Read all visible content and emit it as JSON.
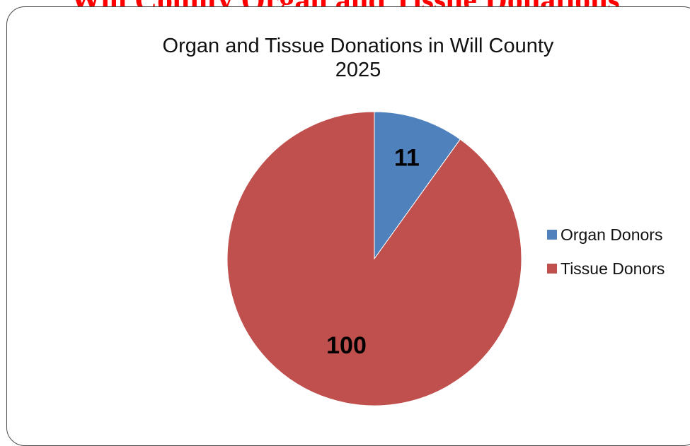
{
  "banner": {
    "text": "Will County Organ and Tissue Donations"
  },
  "chart_data": {
    "type": "pie",
    "title": "Organ and Tissue Donations in Will County",
    "subtitle": "2025",
    "categories": [
      "Organ Donors",
      "Tissue Donors"
    ],
    "values": [
      11,
      100
    ],
    "data_labels": [
      "11",
      "100"
    ],
    "colors": [
      "#4f81bd",
      "#c0504d"
    ],
    "legend_position": "right",
    "start_angle_deg": 0,
    "direction": "clockwise"
  }
}
